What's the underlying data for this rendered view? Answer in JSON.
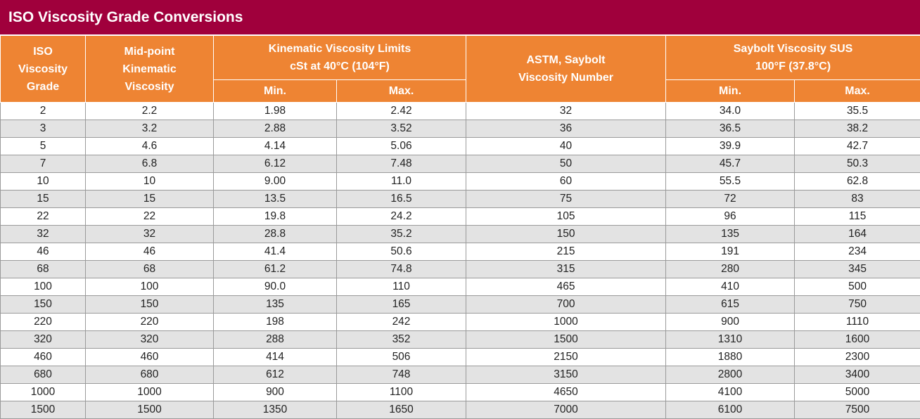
{
  "title": "ISO Viscosity Grade Conversions",
  "colors": {
    "title_bg": "#a0003c",
    "header_bg": "#ee8433",
    "stripe": "#e3e3e3"
  },
  "headers": {
    "iso_grade": [
      "ISO",
      "Viscosity",
      "Grade"
    ],
    "midpoint": [
      "Mid-point",
      "Kinematic",
      "Viscosity"
    ],
    "kinematic": [
      "Kinematic Viscosity Limits",
      "cSt at 40°C (104°F)"
    ],
    "astm": [
      "ASTM, Saybolt",
      "Viscosity Number"
    ],
    "saybolt": [
      "Saybolt Viscosity SUS",
      "100°F (37.8°C)"
    ],
    "kin_min": "Min.",
    "kin_max": "Max.",
    "sus_min": "Min.",
    "sus_max": "Max."
  },
  "rows": [
    [
      "2",
      "2.2",
      "1.98",
      "2.42",
      "32",
      "34.0",
      "35.5"
    ],
    [
      "3",
      "3.2",
      "2.88",
      "3.52",
      "36",
      "36.5",
      "38.2"
    ],
    [
      "5",
      "4.6",
      "4.14",
      "5.06",
      "40",
      "39.9",
      "42.7"
    ],
    [
      "7",
      "6.8",
      "6.12",
      "7.48",
      "50",
      "45.7",
      "50.3"
    ],
    [
      "10",
      "10",
      "9.00",
      "11.0",
      "60",
      "55.5",
      "62.8"
    ],
    [
      "15",
      "15",
      "13.5",
      "16.5",
      "75",
      "72",
      "83"
    ],
    [
      "22",
      "22",
      "19.8",
      "24.2",
      "105",
      "96",
      "115"
    ],
    [
      "32",
      "32",
      "28.8",
      "35.2",
      "150",
      "135",
      "164"
    ],
    [
      "46",
      "46",
      "41.4",
      "50.6",
      "215",
      "191",
      "234"
    ],
    [
      "68",
      "68",
      "61.2",
      "74.8",
      "315",
      "280",
      "345"
    ],
    [
      "100",
      "100",
      "90.0",
      "110",
      "465",
      "410",
      "500"
    ],
    [
      "150",
      "150",
      "135",
      "165",
      "700",
      "615",
      "750"
    ],
    [
      "220",
      "220",
      "198",
      "242",
      "1000",
      "900",
      "1110"
    ],
    [
      "320",
      "320",
      "288",
      "352",
      "1500",
      "1310",
      "1600"
    ],
    [
      "460",
      "460",
      "414",
      "506",
      "2150",
      "1880",
      "2300"
    ],
    [
      "680",
      "680",
      "612",
      "748",
      "3150",
      "2800",
      "3400"
    ],
    [
      "1000",
      "1000",
      "900",
      "1100",
      "4650",
      "4100",
      "5000"
    ],
    [
      "1500",
      "1500",
      "1350",
      "1650",
      "7000",
      "6100",
      "7500"
    ]
  ]
}
